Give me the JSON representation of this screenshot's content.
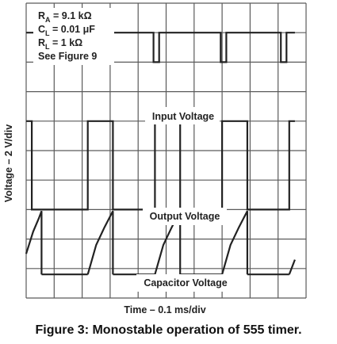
{
  "caption": "Figure 3: Monostable operation of 555 timer.",
  "chart_data": {
    "type": "line",
    "grid": true,
    "grid_divisions": {
      "x": 10,
      "y": 10
    },
    "xlabel": "Time – 0.1 ms/div",
    "ylabel": "Voltage – 2 V/div",
    "x_unit": "div",
    "y_unit": "div",
    "xlim": [
      0,
      10
    ],
    "ylim": [
      0,
      10
    ],
    "conditions": [
      {
        "sym": "R",
        "sub": "A",
        "val": " = 9.1 kΩ"
      },
      {
        "sym": "C",
        "sub": "L",
        "val": " = 0.01 μF"
      },
      {
        "sym": "R",
        "sub": "L",
        "val": " = 1 kΩ"
      },
      {
        "sym": "See Figure 9",
        "sub": "",
        "val": ""
      }
    ],
    "series": [
      {
        "name": "Input Voltage",
        "color": "#222222",
        "x": [
          0,
          2.15,
          2.15,
          2.35,
          2.35,
          4.55,
          4.55,
          4.75,
          4.75,
          6.95,
          6.95,
          7.15,
          7.15,
          9.1,
          9.1,
          9.3,
          9.3,
          9.6
        ],
        "y": [
          9.0,
          9.0,
          8.0,
          8.0,
          9.0,
          9.0,
          8.0,
          8.0,
          9.0,
          9.0,
          8.0,
          8.0,
          9.0,
          9.0,
          8.0,
          8.0,
          9.0,
          9.0
        ]
      },
      {
        "name": "Output Voltage",
        "color": "#222222",
        "x": [
          0,
          0.2,
          0.2,
          2.2,
          2.2,
          3.1,
          3.1,
          4.6,
          4.6,
          5.5,
          5.5,
          7.0,
          7.0,
          7.9,
          7.9,
          9.4,
          9.4,
          9.6
        ],
        "y": [
          6.0,
          6.0,
          3.0,
          3.0,
          6.0,
          6.0,
          3.0,
          3.0,
          6.0,
          6.0,
          3.0,
          3.0,
          6.0,
          6.0,
          3.0,
          3.0,
          6.0,
          6.0
        ]
      },
      {
        "name": "Capacitor Voltage",
        "color": "#222222",
        "segments": [
          {
            "x": [
              0,
              0.25,
              0.45,
              0.55,
              0.55
            ],
            "y": [
              1.5,
              2.25,
              2.7,
              2.95,
              0.8
            ]
          },
          {
            "x": [
              0.55,
              2.2
            ],
            "y": [
              0.8,
              0.8
            ]
          },
          {
            "x": [
              2.2,
              2.5,
              2.8,
              3.1,
              3.1
            ],
            "y": [
              0.8,
              1.8,
              2.4,
              2.95,
              0.8
            ]
          },
          {
            "x": [
              3.1,
              4.6
            ],
            "y": [
              0.8,
              0.8
            ]
          },
          {
            "x": [
              4.6,
              4.9,
              5.2,
              5.5,
              5.5
            ],
            "y": [
              0.8,
              1.8,
              2.4,
              2.95,
              0.8
            ]
          },
          {
            "x": [
              5.5,
              7.0
            ],
            "y": [
              0.8,
              0.8
            ]
          },
          {
            "x": [
              7.0,
              7.3,
              7.6,
              7.9,
              7.9
            ],
            "y": [
              0.8,
              1.8,
              2.4,
              2.95,
              0.8
            ]
          },
          {
            "x": [
              7.9,
              9.4
            ],
            "y": [
              0.8,
              0.8
            ]
          },
          {
            "x": [
              9.4,
              9.6
            ],
            "y": [
              0.8,
              1.3
            ]
          }
        ]
      }
    ]
  }
}
